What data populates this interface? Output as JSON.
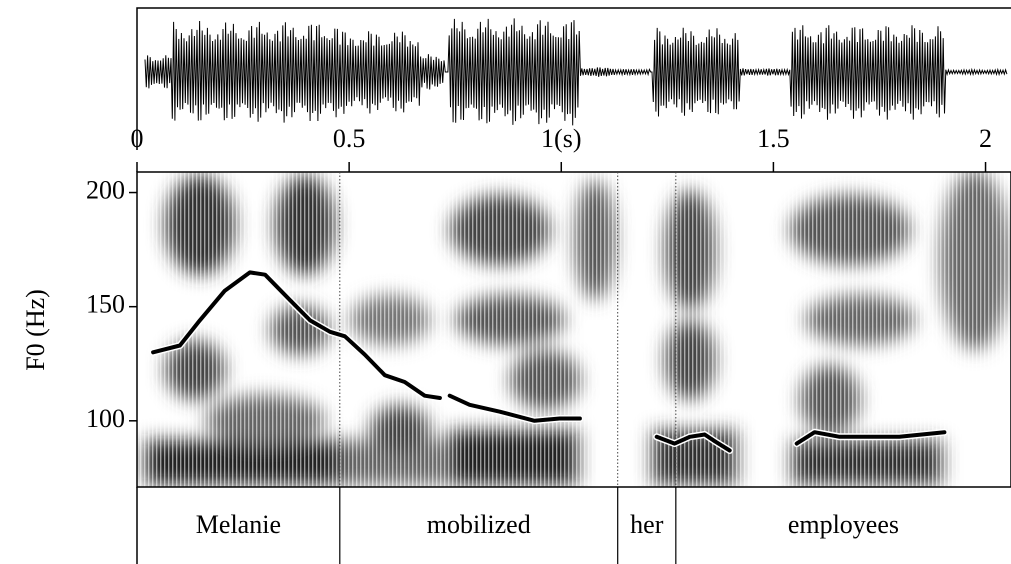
{
  "chart_data": {
    "type": "line",
    "y_label": "F0 (Hz)",
    "xlim": [
      0,
      2.06
    ],
    "ylim": [
      71,
      209
    ],
    "xticks": [
      0,
      0.5,
      {
        "value": 1,
        "label": "1(s)"
      },
      1.5,
      2
    ],
    "yticks": [
      100,
      150,
      200
    ],
    "color": "#000000",
    "x": [
      0.038,
      0.101,
      0.148,
      0.207,
      0.266,
      0.302,
      0.36,
      0.408,
      0.455,
      0.49,
      0.537,
      0.584,
      0.631,
      0.678,
      0.714,
      null,
      0.737,
      0.784,
      0.855,
      0.937,
      0.996,
      1.044,
      null,
      1.225,
      1.267,
      1.303,
      1.338,
      1.362,
      1.397,
      null,
      1.555,
      1.597,
      1.656,
      1.727,
      1.797,
      1.903
    ],
    "values": [
      130,
      133,
      144,
      157,
      165,
      164,
      153,
      144,
      139,
      137,
      129,
      120,
      117,
      111,
      110,
      null,
      111,
      107,
      104,
      100,
      101,
      101,
      null,
      93,
      90,
      93,
      94,
      91,
      87,
      null,
      90,
      95,
      93,
      93,
      93,
      95
    ],
    "words": [
      {
        "label": "Melanie",
        "start": 0,
        "end": 0.478
      },
      {
        "label": "mobilized",
        "start": 0.478,
        "end": 1.133
      },
      {
        "label": "her",
        "start": 1.133,
        "end": 1.27
      },
      {
        "label": "employees",
        "start": 1.27,
        "end": 2.06
      }
    ]
  }
}
